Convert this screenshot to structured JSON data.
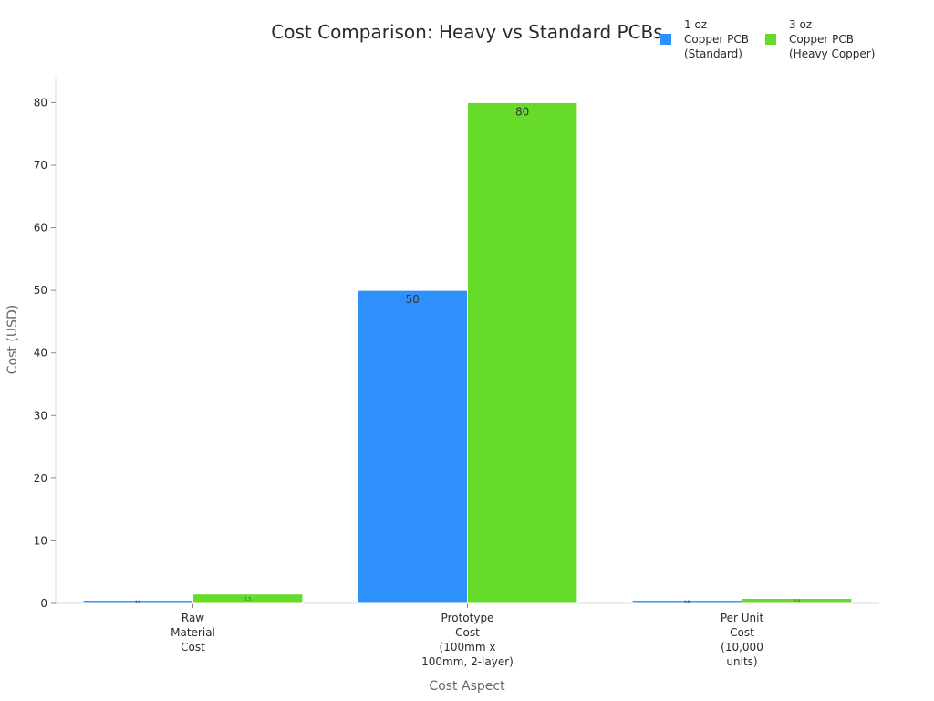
{
  "chart_data": {
    "type": "bar",
    "title": "Cost Comparison: Heavy vs Standard PCBs",
    "xlabel": "Cost Aspect",
    "ylabel": "Cost (USD)",
    "ylim": [
      0,
      84
    ],
    "yticks": [
      0,
      10,
      20,
      30,
      40,
      50,
      60,
      70,
      80
    ],
    "grid": false,
    "legend_position": "top-right",
    "categories": [
      [
        "Raw",
        "Material",
        "Cost"
      ],
      [
        "Prototype",
        "Cost",
        "(100mm x",
        "100mm, 2-layer)"
      ],
      [
        "Per Unit",
        "Cost",
        "(10,000",
        "units)"
      ]
    ],
    "series": [
      {
        "name": [
          "1 oz",
          "Copper PCB",
          "(Standard)"
        ],
        "color": "#2e90fa",
        "values": [
          0.5,
          50,
          0.5
        ],
        "labels": [
          "0.5",
          "50",
          "0.5"
        ]
      },
      {
        "name": [
          "3 oz",
          "Copper PCB",
          "(Heavy Copper)"
        ],
        "color": "#66db2a",
        "values": [
          1.5,
          80,
          0.8
        ],
        "labels": [
          "1.5",
          "80",
          "0.8"
        ]
      }
    ]
  }
}
